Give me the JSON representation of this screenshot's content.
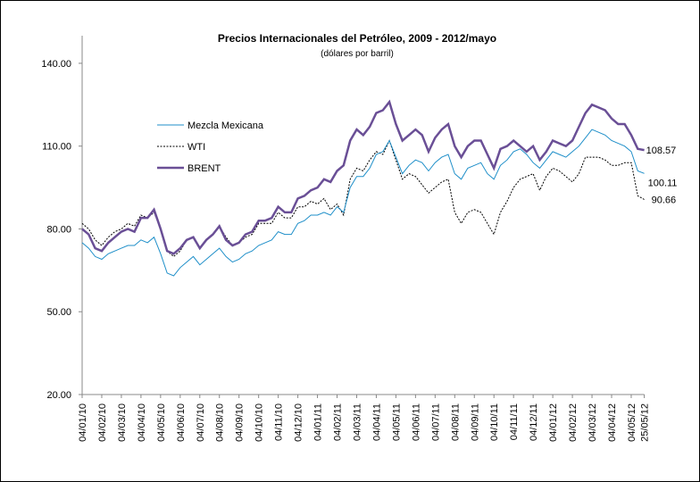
{
  "chart_data": {
    "type": "line",
    "title": "Precios Internacionales del Petróleo, 2009 - 2012/mayo",
    "subtitle": "(dólares por barril)",
    "categories": [
      "04/01/10",
      null,
      null,
      "04/02/10",
      null,
      null,
      "04/03/10",
      null,
      null,
      "04/04/10",
      null,
      null,
      "04/05/10",
      null,
      null,
      "04/06/10",
      null,
      null,
      "04/07/10",
      null,
      null,
      "04/08/10",
      null,
      null,
      "04/09/10",
      null,
      null,
      "04/10/10",
      null,
      null,
      "04/11/10",
      null,
      null,
      "04/12/10",
      null,
      null,
      "04/01/11",
      null,
      null,
      "04/02/11",
      null,
      null,
      "04/03/11",
      null,
      null,
      "04/04/11",
      null,
      null,
      "04/05/11",
      null,
      null,
      "04/06/11",
      null,
      null,
      "04/07/11",
      null,
      null,
      "04/08/11",
      null,
      null,
      "04/09/11",
      null,
      null,
      "04/10/11",
      null,
      null,
      "04/11/11",
      null,
      null,
      "04/12/11",
      null,
      null,
      "04/01/12",
      null,
      null,
      "04/02/12",
      null,
      null,
      "04/03/12",
      null,
      null,
      "04/04/12",
      null,
      null,
      "04/05/12",
      null,
      "25/05/12"
    ],
    "series": [
      {
        "name": "Mezcla Mexicana",
        "color": "#1f8fc9",
        "values": [
          75,
          73,
          70,
          69,
          71,
          72,
          73,
          74,
          74,
          76,
          75,
          77,
          71,
          64,
          63,
          66,
          68,
          70,
          67,
          69,
          71,
          73,
          70,
          68,
          69,
          71,
          72,
          74,
          75,
          76,
          79,
          78,
          78,
          82,
          83,
          85,
          85,
          86,
          85,
          88,
          86,
          95,
          99,
          99,
          102,
          107,
          108,
          112,
          106,
          100,
          103,
          105,
          104,
          101,
          104,
          106,
          107,
          100,
          98,
          102,
          103,
          104,
          100,
          98,
          103,
          105,
          108,
          109,
          107,
          104,
          102,
          105,
          108,
          107,
          106,
          108,
          110,
          113,
          116,
          115,
          114,
          112,
          111,
          110,
          108,
          101,
          100.11
        ]
      },
      {
        "name": "WTI",
        "color": "#000000",
        "values": [
          82,
          80,
          76,
          74,
          77,
          79,
          80,
          82,
          81,
          85,
          84,
          86,
          80,
          72,
          70,
          72,
          76,
          77,
          73,
          76,
          78,
          81,
          77,
          74,
          75,
          77,
          78,
          82,
          82,
          82,
          86,
          84,
          84,
          88,
          88,
          90,
          89,
          91,
          87,
          89,
          85,
          98,
          102,
          101,
          105,
          108,
          107,
          112,
          105,
          98,
          100,
          99,
          96,
          93,
          95,
          97,
          98,
          86,
          82,
          86,
          87,
          86,
          82,
          78,
          86,
          90,
          95,
          98,
          99,
          100,
          94,
          99,
          102,
          101,
          99,
          97,
          100,
          106,
          106,
          106,
          105,
          103,
          103,
          104,
          104,
          92,
          90.66
        ]
      },
      {
        "name": "BRENT",
        "color": "#6a4f96",
        "values": [
          80,
          78,
          73,
          72,
          75,
          77,
          79,
          80,
          79,
          84,
          84,
          87,
          80,
          72,
          71,
          73,
          76,
          77,
          73,
          76,
          78,
          81,
          76,
          74,
          75,
          78,
          79,
          83,
          83,
          84,
          88,
          86,
          86,
          91,
          92,
          94,
          95,
          98,
          97,
          101,
          103,
          112,
          116,
          114,
          117,
          122,
          123,
          126,
          118,
          112,
          114,
          116,
          114,
          108,
          113,
          116,
          118,
          110,
          106,
          110,
          112,
          112,
          107,
          102,
          109,
          110,
          112,
          110,
          108,
          110,
          105,
          108,
          112,
          111,
          110,
          112,
          117,
          122,
          125,
          124,
          123,
          120,
          118,
          118,
          114,
          109,
          108.57
        ]
      }
    ],
    "ylim": [
      20,
      150
    ],
    "yticks": [
      {
        "value": 20,
        "label": "20.00"
      },
      {
        "value": 50,
        "label": "50.00"
      },
      {
        "value": 80,
        "label": "80.00"
      },
      {
        "value": 110,
        "label": "110.00"
      },
      {
        "value": 140,
        "label": "140.00"
      }
    ]
  }
}
